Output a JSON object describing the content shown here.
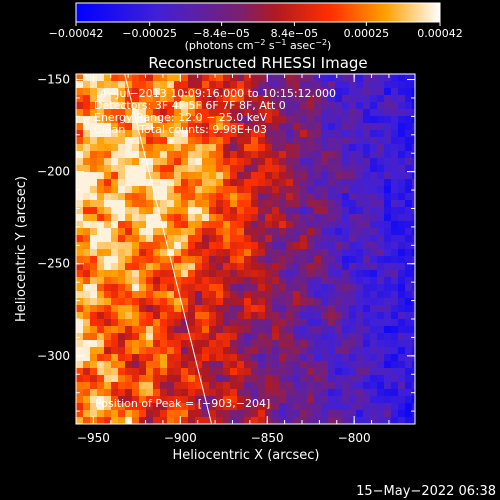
{
  "chart_data": {
    "type": "heatmap",
    "title": "Reconstructed RHESSI Image",
    "xlabel": "Heliocentric X (arcsec)",
    "ylabel": "Heliocentric Y (arcsec)",
    "xlim": [
      -960,
      -765
    ],
    "ylim": [
      -337,
      -147
    ],
    "x_ticks": [
      -950,
      -900,
      -850,
      -800
    ],
    "x_tick_labels": [
      "−950",
      "−900",
      "−850",
      "−800"
    ],
    "y_ticks": [
      -150,
      -200,
      -250,
      -300
    ],
    "y_tick_labels": [
      "−150",
      "−200",
      "−250",
      "−300"
    ],
    "colorbar": {
      "range": [
        -0.00042,
        0.00042
      ],
      "ticks": [
        -0.00042,
        -0.00025,
        -8.4e-05,
        8.4e-05,
        0.00025,
        0.00042
      ],
      "tick_labels": [
        "−0.00042",
        "−0.00025",
        "−8.4e−05",
        "8.4e−05",
        "0.00025",
        "0.00042"
      ],
      "units_prefix": "(photons cm",
      "units_exp1": "−2",
      "units_mid": " s",
      "units_exp2": "−1",
      "units_mid2": " asec",
      "units_exp3": "−2",
      "units_suffix": ")",
      "colormap": "blue-purple-red-yellow-white"
    },
    "annotations": {
      "time_range": "4−Jul−2013 10:09:16.000 to 10:15:12.000",
      "detectors": "Detectors: 3F 4F 5F 6F 7F 8F, Att 0",
      "energy_range": "Energy Range: 12.0 − 25.0 keV",
      "algorithm": "Clean    Total counts: 9.98E+03",
      "peak": "Position of Peak = [−903,−204]"
    },
    "peak_position": [
      -903,
      -204
    ],
    "limb_line": [
      [
        -932,
        -147
      ],
      [
        -882,
        -337
      ]
    ],
    "footer": "15−May−2022 06:38"
  }
}
